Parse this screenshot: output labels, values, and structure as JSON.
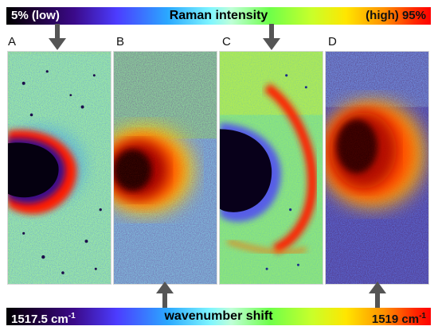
{
  "intensity_scale": {
    "title": "Raman intensity",
    "low_label": "5% (low)",
    "high_label": "(high) 95%"
  },
  "wavenumber_scale": {
    "title": "wavenumber shift",
    "low_value": "1517.5 cm",
    "high_value": "1519 cm",
    "unit_superscript": "-1"
  },
  "panels": {
    "a": {
      "label": "A"
    },
    "b": {
      "label": "B"
    },
    "c": {
      "label": "C"
    },
    "d": {
      "label": "D"
    }
  },
  "colors": {
    "arrow": "#555555"
  }
}
